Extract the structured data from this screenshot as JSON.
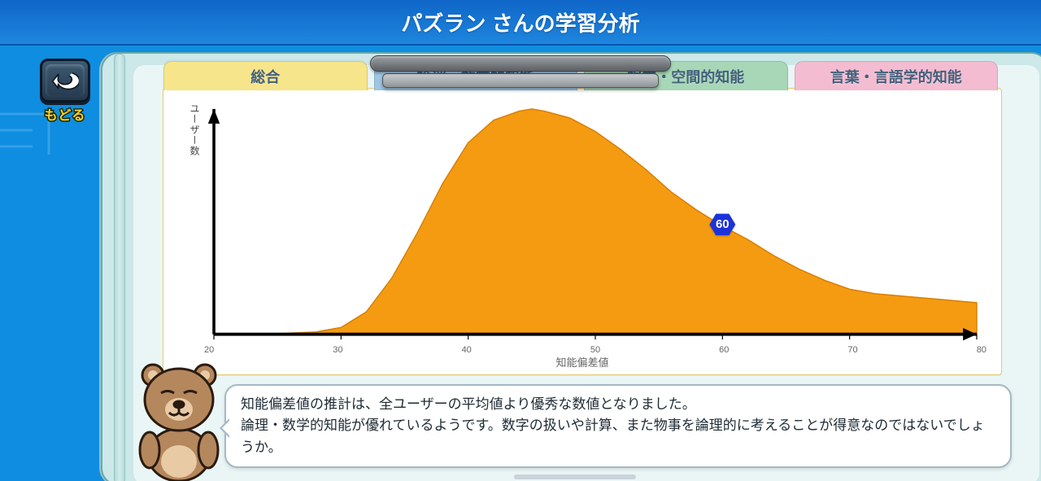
{
  "title": "パズラン さんの学習分析",
  "back_label": "もどる",
  "tabs": [
    {
      "label": "総合",
      "bg": "#f6e58b",
      "active": true
    },
    {
      "label": "論理・数学的知能",
      "bg": "#9fc6e3",
      "active": false
    },
    {
      "label": "視覚・空間的知能",
      "bg": "#a7d7b6",
      "active": false
    },
    {
      "label": "言葉・言語学的知能",
      "bg": "#f4bcd1",
      "active": false
    }
  ],
  "chart": {
    "type": "area",
    "ylabel": "ユーザー数",
    "xlabel": "知能偏差値",
    "xlim": [
      20,
      80
    ],
    "xticks": [
      20,
      30,
      40,
      50,
      60,
      70,
      80
    ],
    "fill_color": "#f59b12",
    "curve_stroke": "#d87f00",
    "axis_color": "#000000",
    "background_color": "#ffffff",
    "curve": [
      [
        20,
        0.0
      ],
      [
        24,
        0.0
      ],
      [
        28,
        0.01
      ],
      [
        30,
        0.03
      ],
      [
        32,
        0.1
      ],
      [
        34,
        0.25
      ],
      [
        36,
        0.45
      ],
      [
        38,
        0.67
      ],
      [
        40,
        0.85
      ],
      [
        42,
        0.95
      ],
      [
        44,
        0.99
      ],
      [
        45,
        1.0
      ],
      [
        46,
        0.99
      ],
      [
        48,
        0.96
      ],
      [
        50,
        0.9
      ],
      [
        52,
        0.82
      ],
      [
        54,
        0.73
      ],
      [
        56,
        0.63
      ],
      [
        58,
        0.55
      ],
      [
        60,
        0.48
      ],
      [
        62,
        0.42
      ],
      [
        64,
        0.35
      ],
      [
        66,
        0.29
      ],
      [
        68,
        0.24
      ],
      [
        70,
        0.2
      ],
      [
        72,
        0.18
      ],
      [
        74,
        0.17
      ],
      [
        76,
        0.16
      ],
      [
        78,
        0.15
      ],
      [
        80,
        0.14
      ]
    ],
    "marker": {
      "value": 60,
      "label": "60",
      "color": "#1d32d9",
      "text_color": "#ffffff"
    }
  },
  "commentary": {
    "line1": "知能偏差値の推計は、全ユーザーの平均値より優秀な数値となりました。",
    "line2": "論理・数学的知能が優れているようです。数字の扱いや計算、また物事を論理的に考えることが得意なのではないでしょうか。"
  }
}
